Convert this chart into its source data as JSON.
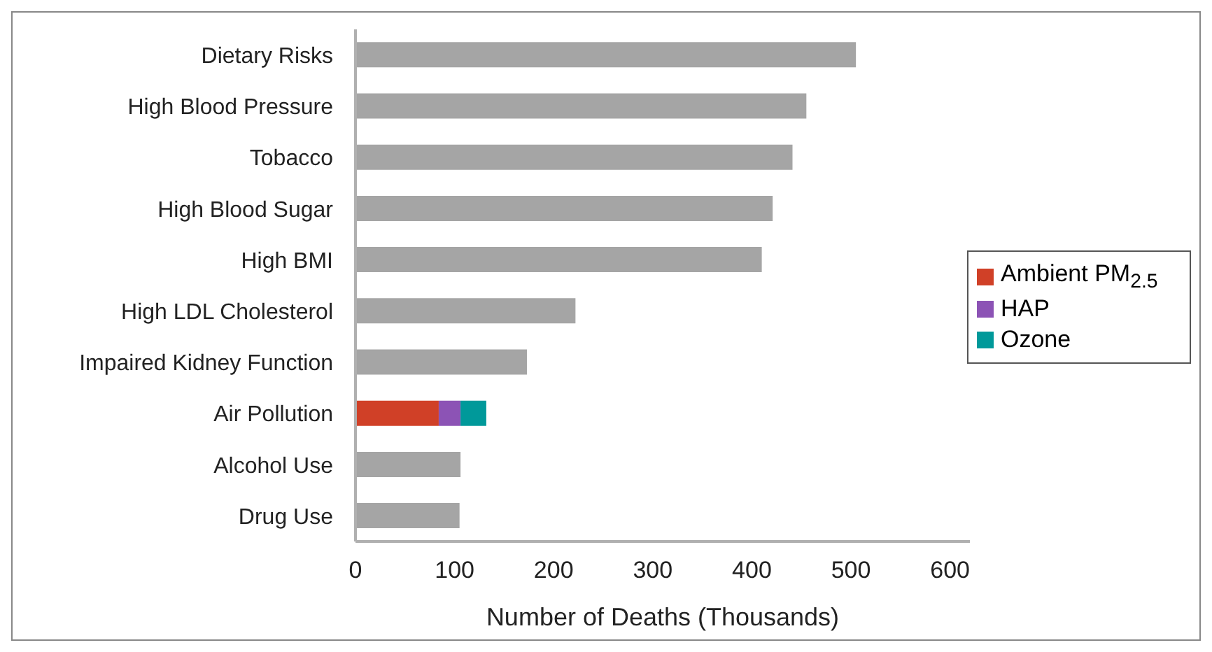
{
  "chart_data": {
    "type": "bar",
    "orientation": "horizontal",
    "stacked": true,
    "xlabel": "Number of Deaths (Thousands)",
    "categories": [
      "Dietary Risks",
      "High Blood Pressure",
      "Tobacco",
      "High Blood Sugar",
      "High BMI",
      "High LDL Cholesterol",
      "Impaired Kidney Function",
      "Air Pollution",
      "Alcohol Use",
      "Drug Use"
    ],
    "series": [
      {
        "color": "#a5a5a5",
        "values": [
          505,
          455,
          441,
          421,
          410,
          222,
          173,
          null,
          106,
          105
        ]
      },
      {
        "name": "Ambient PM$_{2.5}$",
        "color": "#d04027",
        "values": [
          null,
          null,
          null,
          null,
          null,
          null,
          null,
          84,
          null,
          null
        ]
      },
      {
        "name": "HAP",
        "color": "#8c53b5",
        "values": [
          null,
          null,
          null,
          null,
          null,
          null,
          null,
          22,
          null,
          null
        ]
      },
      {
        "name": "Ozone",
        "color": "#00999a",
        "values": [
          null,
          null,
          null,
          null,
          null,
          null,
          null,
          26,
          null,
          null
        ]
      }
    ],
    "xlim": [
      0,
      620
    ],
    "xticks": [
      0,
      100,
      200,
      300,
      400,
      500,
      600
    ],
    "legend": "right"
  }
}
